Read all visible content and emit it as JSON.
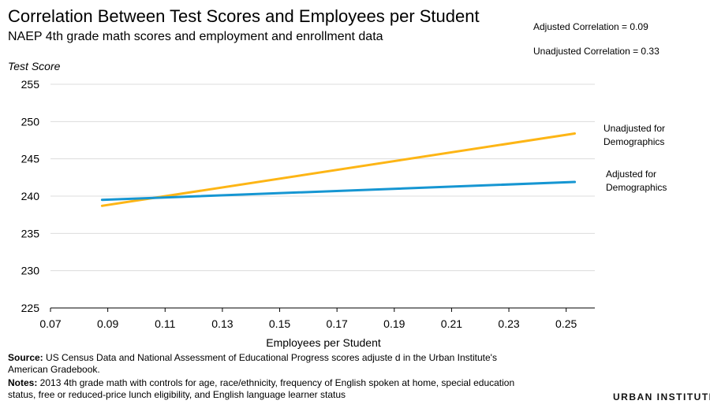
{
  "header": {
    "title": "Correlation Between Test Scores and Employees per Student",
    "subtitle": "NAEP 4th grade math scores and employment and enrollment data"
  },
  "stats": {
    "adjusted": "Adjusted Correlation = 0.09",
    "unadjusted": "Unadjusted Correlation = 0.33"
  },
  "chart_data": {
    "type": "line",
    "ylabel": "Test Score",
    "xlabel": "Employees per Student",
    "xlim": [
      0.07,
      0.26
    ],
    "ylim": [
      225,
      255
    ],
    "x_ticks": [
      "0.07",
      "0.09",
      "0.11",
      "0.13",
      "0.15",
      "0.17",
      "0.19",
      "0.21",
      "0.23",
      "0.25"
    ],
    "y_ticks": [
      "225",
      "230",
      "235",
      "240",
      "245",
      "250",
      "255"
    ],
    "grid": "horizontal",
    "series": [
      {
        "label_lines": [
          "Unadjusted for",
          "Demographics"
        ],
        "color": "#fdb515",
        "points": [
          [
            0.088,
            238.7
          ],
          [
            0.253,
            248.4
          ]
        ]
      },
      {
        "label_lines": [
          "Adjusted for",
          "Demographics"
        ],
        "color": "#1696d2",
        "points": [
          [
            0.088,
            239.5
          ],
          [
            0.253,
            241.9
          ]
        ]
      }
    ]
  },
  "footer": {
    "source_label": "Source:",
    "source_line1": " US Census Data and  National Assessment of Educational Progress scores adjuste d in the Urban Institute's",
    "source_line2": "American Gradebook.",
    "notes_label": "Notes:",
    "notes_line1": " 2013 4th grade math with controls for age, race/ethnicity, frequency of English spoken at home, special education",
    "notes_line2": "status, free or reduced-price lunch eligibility, and English language learner status"
  },
  "brand": {
    "name": "URBAN INSTITUTE"
  }
}
